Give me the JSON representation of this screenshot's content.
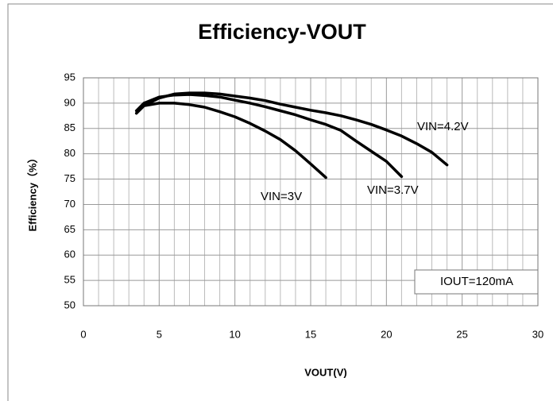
{
  "chart_data": {
    "type": "line",
    "title": "Efficiency-VOUT",
    "x_label": "VOUT(V)",
    "y_label": "Efficiency（%）",
    "annotation": "IOUT=120mA",
    "xlim": [
      0,
      30
    ],
    "xticks": [
      0,
      5,
      10,
      15,
      20,
      25,
      30
    ],
    "minor_xticks": [
      1,
      2,
      3,
      4,
      6,
      7,
      8,
      9,
      11,
      12,
      13,
      14,
      16,
      17,
      18,
      19,
      21,
      22,
      23,
      24,
      26,
      27,
      28,
      29
    ],
    "ylim": [
      50,
      95
    ],
    "yticks": [
      50,
      55,
      60,
      65,
      70,
      75,
      80,
      85,
      90,
      95
    ],
    "grid": true,
    "series": [
      {
        "name": "VIN=3V",
        "color": "#000000",
        "x": [
          3.5,
          4,
          5,
          6,
          7,
          8,
          9,
          10,
          11,
          12,
          13,
          14,
          15,
          16
        ],
        "values": [
          88,
          89.5,
          90,
          90,
          89.7,
          89.2,
          88.3,
          87.3,
          86,
          84.5,
          82.8,
          80.6,
          78,
          75.3
        ]
      },
      {
        "name": "VIN=3.7V",
        "color": "#000000",
        "x": [
          3.5,
          4,
          5,
          6,
          7,
          8,
          9,
          10,
          11,
          12,
          13,
          14,
          15,
          16,
          17,
          18,
          19,
          20,
          21
        ],
        "values": [
          88.5,
          90,
          91.2,
          91.6,
          91.7,
          91.5,
          91.2,
          90.6,
          90,
          89.3,
          88.5,
          87.7,
          86.7,
          85.8,
          84.6,
          82.5,
          80.5,
          78.5,
          75.5
        ]
      },
      {
        "name": "VIN=4.2V",
        "color": "#000000",
        "x": [
          4,
          5,
          6,
          7,
          8,
          9,
          10,
          11,
          12,
          13,
          14,
          15,
          16,
          17,
          18,
          19,
          20,
          21,
          22,
          23,
          24
        ],
        "values": [
          89.5,
          91,
          91.8,
          92,
          92,
          91.8,
          91.4,
          91,
          90.5,
          89.8,
          89.2,
          88.6,
          88.1,
          87.5,
          86.7,
          85.8,
          84.7,
          83.5,
          82,
          80.3,
          77.8
        ]
      }
    ]
  }
}
